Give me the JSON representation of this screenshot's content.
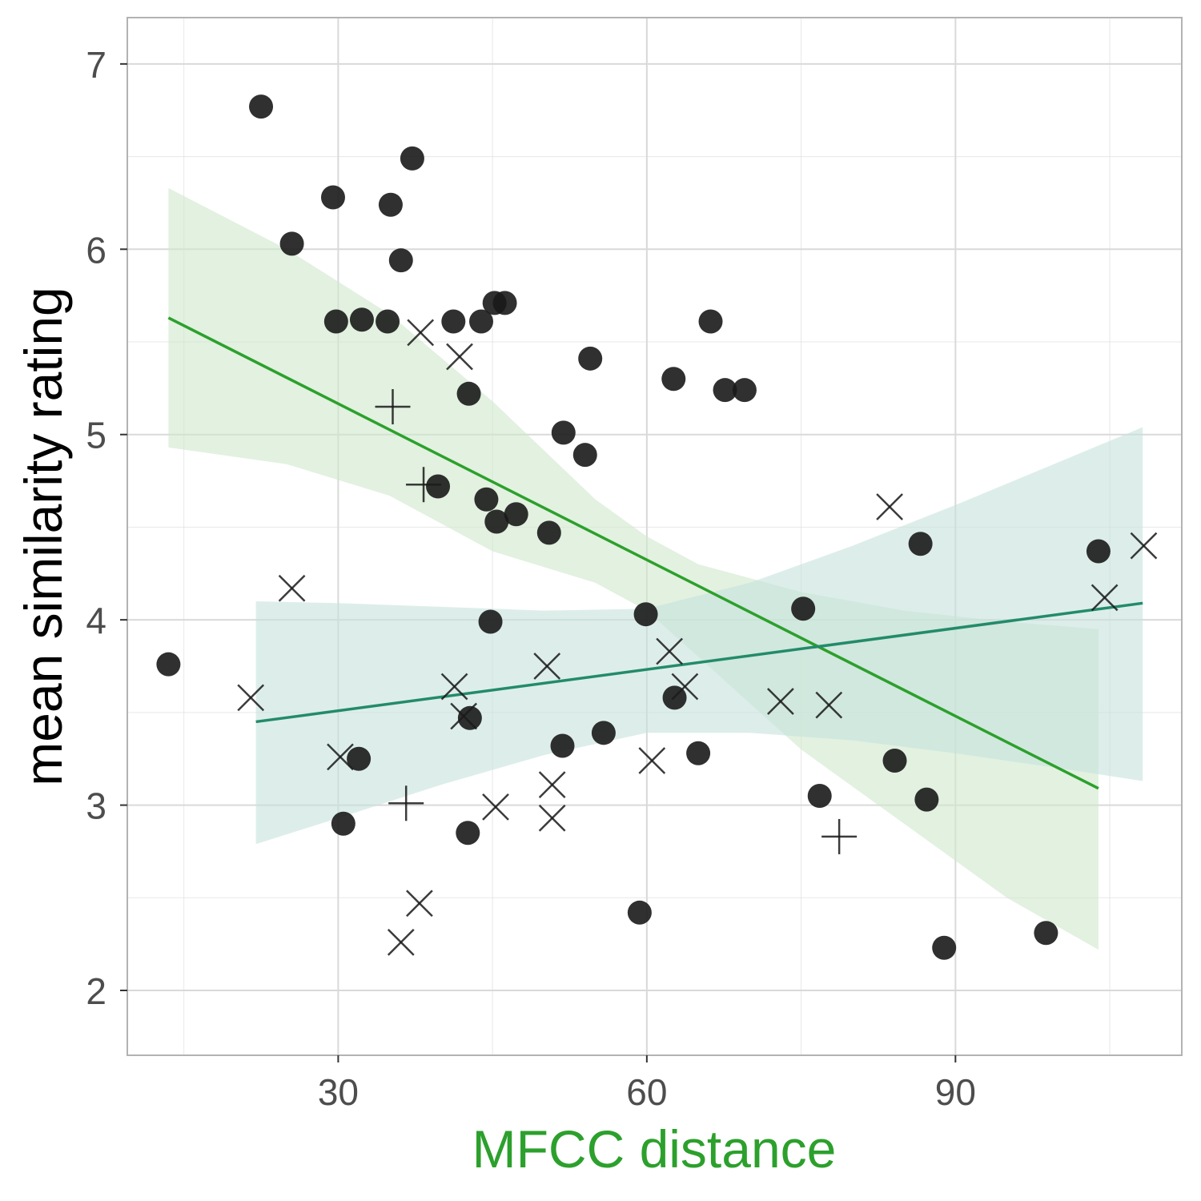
{
  "colors": {
    "background": "#ffffff",
    "grid": "#d9d9d9",
    "panel_border": "#b3b3b3",
    "point": "#1a1a1a",
    "fit_a_line": "#2ca02c",
    "fit_a_band": "#cfe8cb",
    "fit_b_line": "#238b6a",
    "fit_b_band": "#c6e2dc",
    "xlabel_color": "#2ca02c",
    "ylabel_color": "#000000",
    "tick_label": "#4d4d4d"
  },
  "chart_data": {
    "type": "scatter",
    "title": "",
    "xlabel": "MFCC distance",
    "ylabel": "mean similarity rating",
    "xlim": [
      9.5,
      112
    ],
    "ylim": [
      1.65,
      7.25
    ],
    "x_ticks": [
      30,
      60,
      90
    ],
    "x_tick_labels": [
      "30",
      "60",
      "90"
    ],
    "x_minor_ticks": [
      15,
      45,
      75,
      105
    ],
    "y_ticks": [
      2,
      3,
      4,
      5,
      6,
      7
    ],
    "y_tick_labels": [
      "2",
      "3",
      "4",
      "5",
      "6",
      "7"
    ],
    "y_minor_ticks": [
      2.5,
      3.5,
      4.5,
      5.5,
      6.5
    ],
    "grid": true,
    "legend": "none",
    "series": [
      {
        "marker": "circle",
        "points": [
          [
            13.5,
            3.76
          ],
          [
            22.5,
            6.77
          ],
          [
            25.5,
            6.03
          ],
          [
            29.5,
            6.28
          ],
          [
            29.8,
            5.61
          ],
          [
            30.5,
            2.9
          ],
          [
            32,
            3.25
          ],
          [
            32.3,
            5.62
          ],
          [
            34.8,
            5.61
          ],
          [
            35.1,
            6.24
          ],
          [
            36.1,
            5.94
          ],
          [
            37.2,
            6.49
          ],
          [
            39.7,
            4.72
          ],
          [
            41.2,
            5.61
          ],
          [
            42.6,
            2.85
          ],
          [
            42.8,
            3.47
          ],
          [
            42.7,
            5.22
          ],
          [
            43.9,
            5.61
          ],
          [
            44.4,
            4.65
          ],
          [
            44.8,
            3.99
          ],
          [
            45.2,
            5.71
          ],
          [
            45.4,
            4.53
          ],
          [
            46.2,
            5.71
          ],
          [
            47.3,
            4.57
          ],
          [
            50.5,
            4.47
          ],
          [
            51.8,
            3.32
          ],
          [
            51.9,
            5.01
          ],
          [
            54.0,
            4.89
          ],
          [
            54.5,
            5.41
          ],
          [
            55.8,
            3.39
          ],
          [
            59.3,
            2.42
          ],
          [
            59.9,
            4.03
          ],
          [
            62.6,
            5.3
          ],
          [
            62.7,
            3.58
          ],
          [
            65.0,
            3.28
          ],
          [
            66.2,
            5.61
          ],
          [
            67.6,
            5.24
          ],
          [
            69.5,
            5.24
          ],
          [
            75.2,
            4.06
          ],
          [
            76.8,
            3.05
          ],
          [
            84.1,
            3.24
          ],
          [
            86.6,
            4.41
          ],
          [
            87.2,
            3.03
          ],
          [
            88.9,
            2.23
          ],
          [
            98.8,
            2.31
          ],
          [
            103.9,
            4.37
          ]
        ]
      },
      {
        "marker": "x",
        "points": [
          [
            25.5,
            4.17
          ],
          [
            21.5,
            3.58
          ],
          [
            30.2,
            3.26
          ],
          [
            36.1,
            2.26
          ],
          [
            37.9,
            2.47
          ],
          [
            38.0,
            5.55
          ],
          [
            41.3,
            3.64
          ],
          [
            42.2,
            3.48
          ],
          [
            41.8,
            5.42
          ],
          [
            45.3,
            2.99
          ],
          [
            50.3,
            3.75
          ],
          [
            50.8,
            3.11
          ],
          [
            50.8,
            2.93
          ],
          [
            60.5,
            3.24
          ],
          [
            62.2,
            3.83
          ],
          [
            63.7,
            3.64
          ],
          [
            73.0,
            3.56
          ],
          [
            77.7,
            3.54
          ],
          [
            83.6,
            4.61
          ],
          [
            104.5,
            4.12
          ],
          [
            108.3,
            4.4
          ]
        ]
      },
      {
        "marker": "plus",
        "points": [
          [
            35.3,
            5.15
          ],
          [
            36.6,
            3.01
          ],
          [
            38.3,
            4.73
          ],
          [
            78.7,
            2.83
          ]
        ]
      }
    ],
    "fits": [
      {
        "line": [
          [
            13.5,
            5.63
          ],
          [
            103.9,
            3.09
          ]
        ],
        "band": {
          "x": [
            13.5,
            25,
            35,
            45,
            55,
            60,
            65,
            75,
            85,
            95,
            103.9
          ],
          "upper": [
            6.33,
            6.0,
            5.65,
            5.18,
            4.65,
            4.45,
            4.3,
            4.15,
            4.05,
            3.99,
            3.95
          ],
          "lower": [
            4.93,
            4.84,
            4.67,
            4.37,
            4.2,
            4.05,
            3.8,
            3.3,
            2.9,
            2.5,
            2.22
          ]
        }
      },
      {
        "line": [
          [
            22,
            3.45
          ],
          [
            108.2,
            4.09
          ]
        ],
        "band": {
          "x": [
            22,
            30,
            40,
            50,
            60,
            70,
            80,
            90,
            100,
            108.2
          ],
          "upper": [
            4.1,
            4.09,
            4.07,
            4.05,
            4.06,
            4.2,
            4.4,
            4.62,
            4.85,
            5.04
          ],
          "lower": [
            2.79,
            2.93,
            3.11,
            3.27,
            3.39,
            3.39,
            3.35,
            3.28,
            3.2,
            3.13
          ]
        }
      }
    ]
  }
}
